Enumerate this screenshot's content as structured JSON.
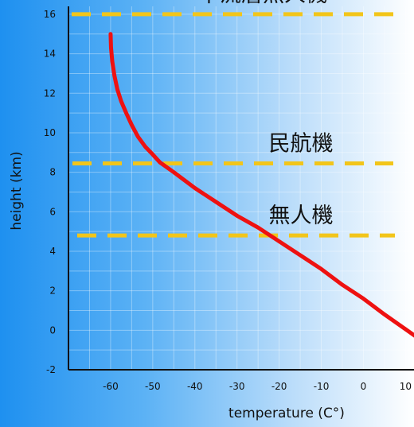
{
  "chart_data": {
    "type": "line",
    "title": "",
    "xlabel": "temperature (C°)",
    "ylabel": "height (km)",
    "xlim": [
      -70,
      12
    ],
    "ylim": [
      -2,
      16.4
    ],
    "x_ticks": [
      -60,
      -50,
      -40,
      -30,
      -20,
      -10,
      0,
      10
    ],
    "y_ticks": [
      -2,
      0,
      2,
      4,
      6,
      8,
      10,
      12,
      14,
      16
    ],
    "grid": true,
    "series": [
      {
        "color": "#ee1111",
        "x": [
          -60,
          -59.9,
          -59.6,
          -59.1,
          -58.4,
          -57.5,
          -56.3,
          -55,
          -53.5,
          -51.8,
          -50,
          -48.3,
          -45,
          -40,
          -35,
          -30,
          -25,
          -20,
          -15,
          -10,
          -5,
          0,
          5,
          10,
          15
        ],
        "y": [
          15,
          14.3,
          13.6,
          12.9,
          12.2,
          11.6,
          11,
          10.4,
          9.8,
          9.3,
          8.9,
          8.5,
          8,
          7.2,
          6.5,
          5.8,
          5.2,
          4.5,
          3.8,
          3.1,
          2.3,
          1.6,
          0.8,
          0.05,
          -0.7
        ]
      }
    ],
    "annotations": [
      {
        "label": "平流層無人機",
        "y": 16.0,
        "color": "#f2c51a"
      },
      {
        "label": "民航機",
        "y": 8.45,
        "color": "#f2c51a"
      },
      {
        "label": "無人機",
        "y": 4.8,
        "color": "#f2c51a"
      }
    ]
  }
}
